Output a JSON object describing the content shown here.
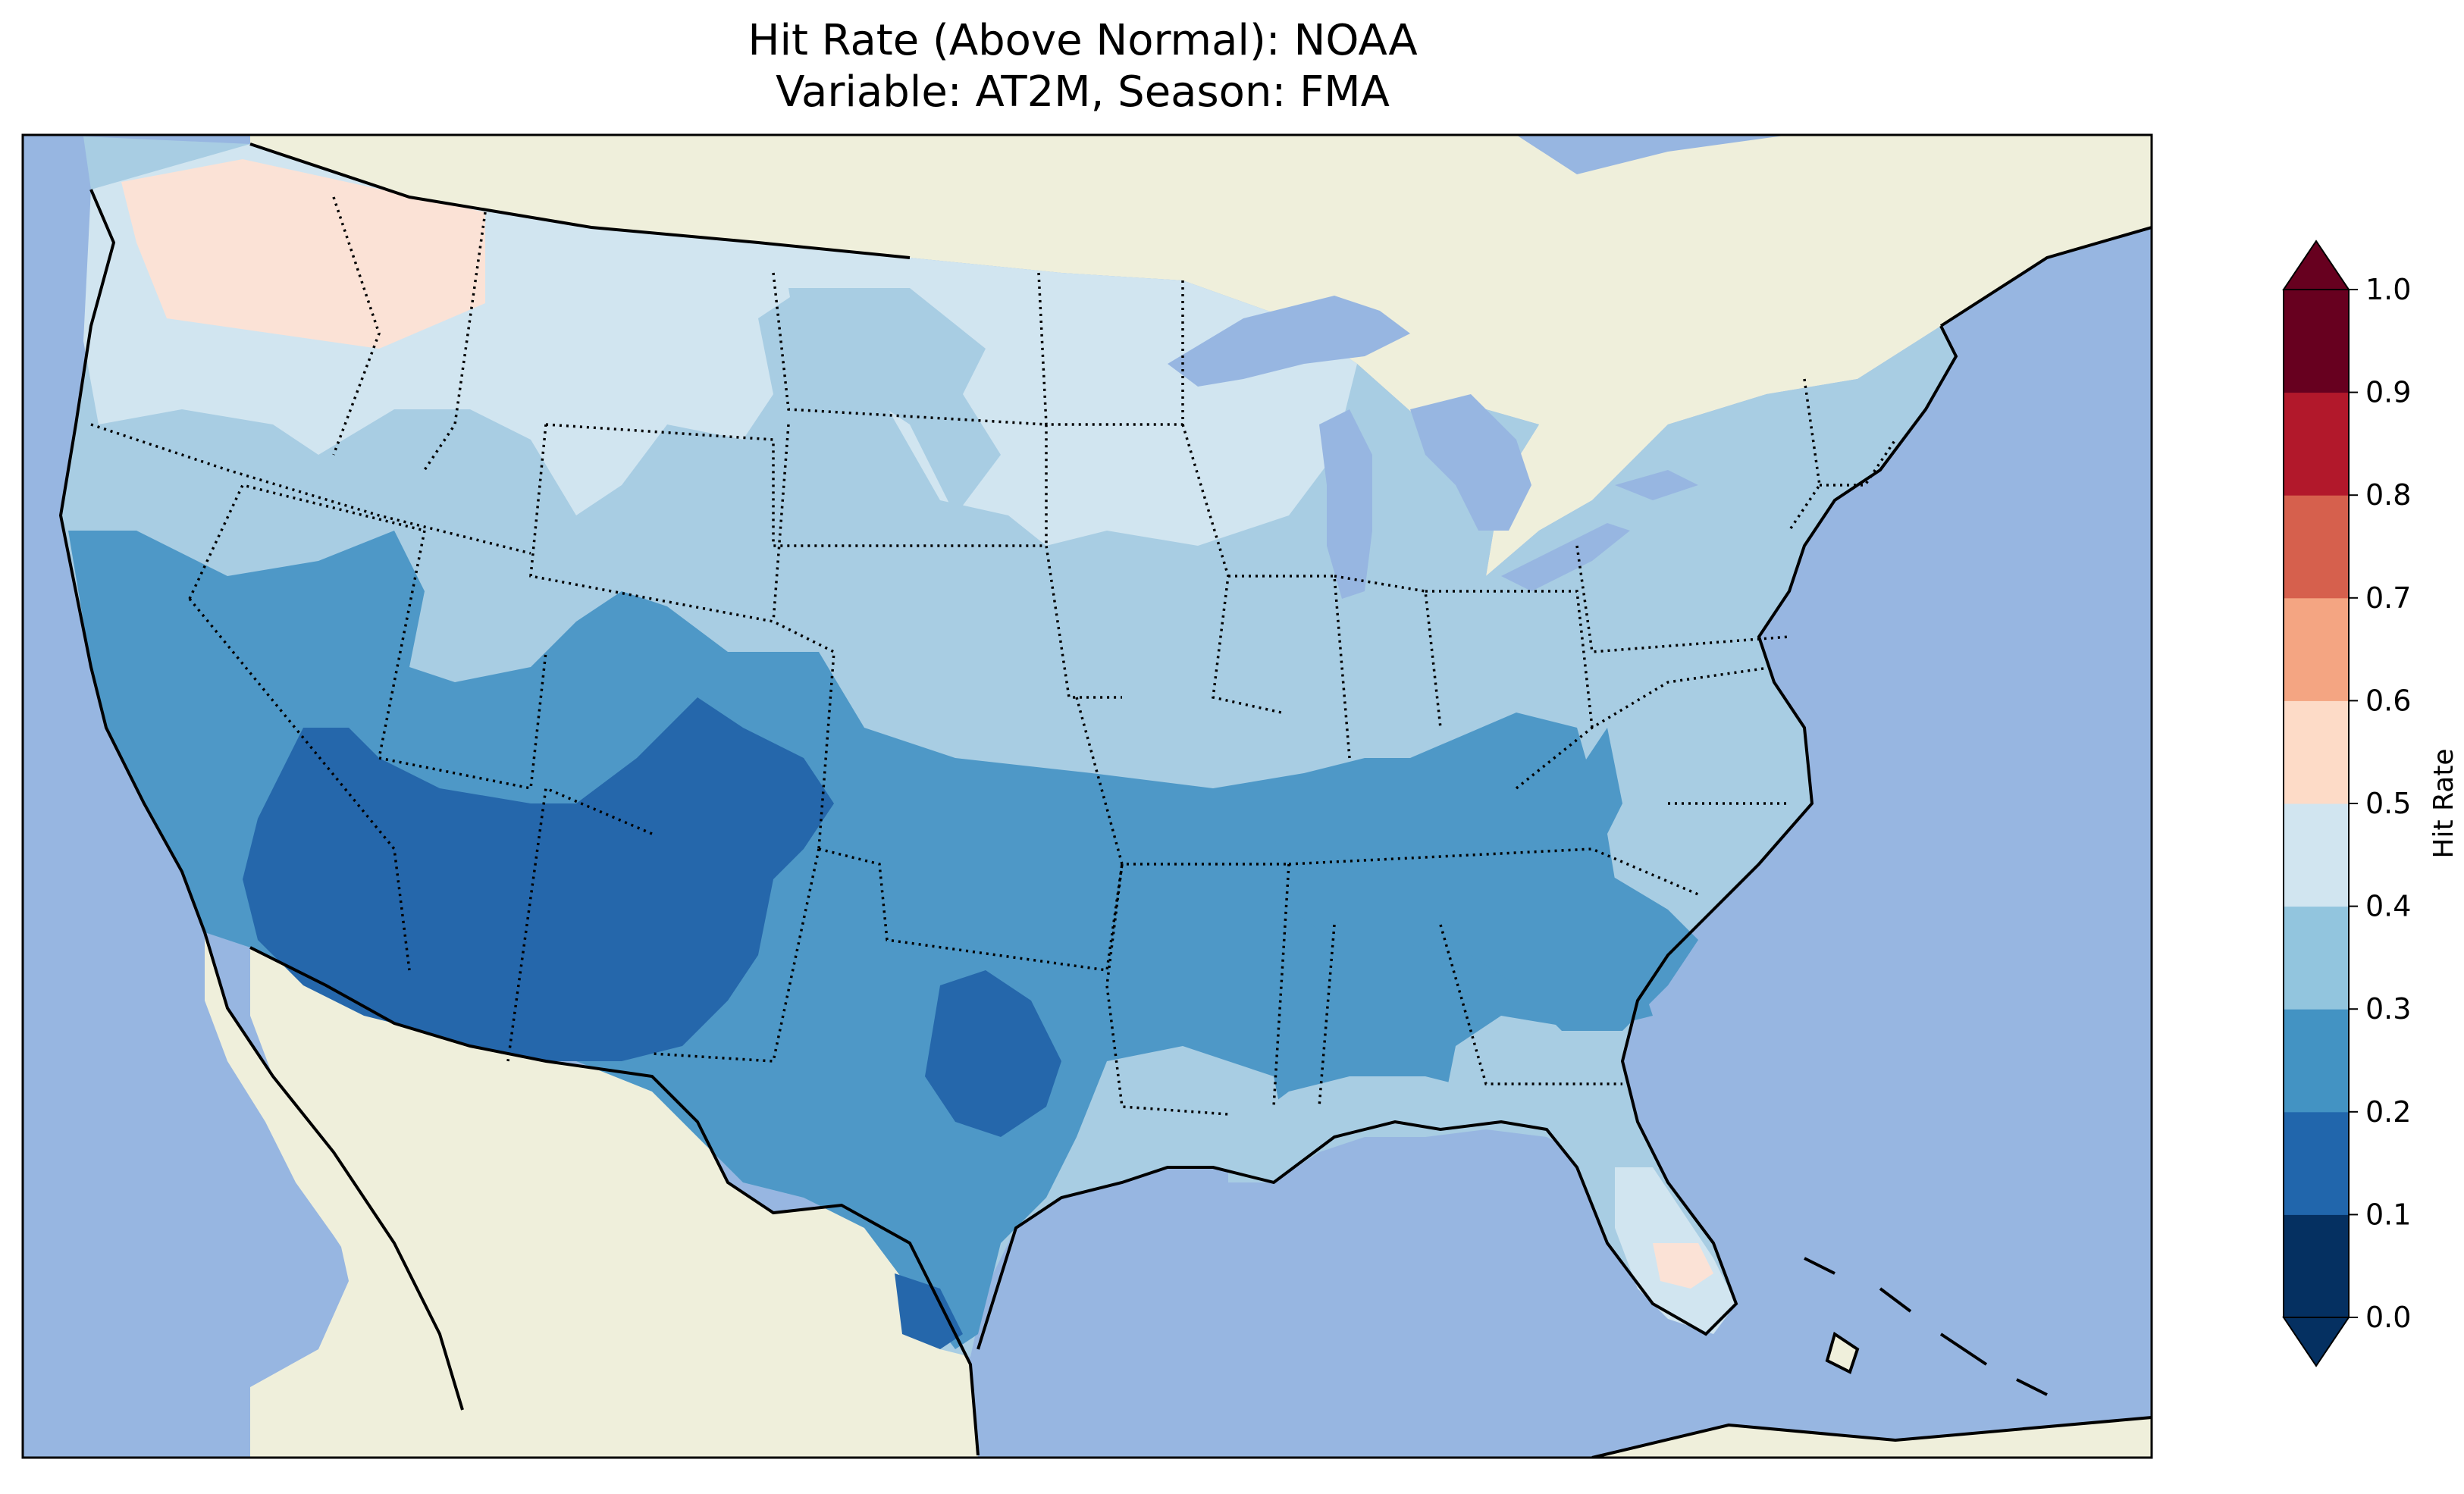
{
  "title": {
    "line1": "Hit Rate (Above Normal): NOAA",
    "line2": "Variable: AT2M, Season: FMA"
  },
  "map": {
    "ocean_color": "#97b6e1",
    "land_color": "#efefdb",
    "lake_color": "#97b6e1",
    "regions": [
      {
        "name": "pacific-northwest-coast",
        "hit_rate_bin": "0.5-0.6"
      },
      {
        "name": "northern-plains",
        "hit_rate_bin": "0.4-0.5"
      },
      {
        "name": "great-lakes",
        "hit_rate_bin": "0.4-0.5"
      },
      {
        "name": "northeast",
        "hit_rate_bin": "0.3-0.4"
      },
      {
        "name": "central-plains",
        "hit_rate_bin": "0.3-0.4"
      },
      {
        "name": "california-nevada",
        "hit_rate_bin": "0.2-0.3"
      },
      {
        "name": "southern-plains",
        "hit_rate_bin": "0.2-0.3"
      },
      {
        "name": "tennessee-valley",
        "hit_rate_bin": "0.2-0.3"
      },
      {
        "name": "desert-southwest",
        "hit_rate_bin": "0.1-0.2"
      },
      {
        "name": "central-texas",
        "hit_rate_bin": "0.1-0.2"
      },
      {
        "name": "gulf-coast",
        "hit_rate_bin": "0.3-0.4"
      },
      {
        "name": "florida",
        "hit_rate_bin": "0.4-0.5"
      },
      {
        "name": "south-florida",
        "hit_rate_bin": "0.5-0.6"
      }
    ]
  },
  "colorbar": {
    "label": "Hit Rate",
    "ticks": [
      "0.0",
      "0.1",
      "0.2",
      "0.3",
      "0.4",
      "0.5",
      "0.6",
      "0.7",
      "0.8",
      "0.9",
      "1.0"
    ],
    "under_color": "#053061",
    "over_color": "#67001f",
    "bin_colors": [
      "#053061",
      "#2166ac",
      "#4393c3",
      "#92c5de",
      "#d1e5f0",
      "#fddbc7",
      "#f4a582",
      "#d6604d",
      "#b2182b",
      "#67001f"
    ]
  }
}
